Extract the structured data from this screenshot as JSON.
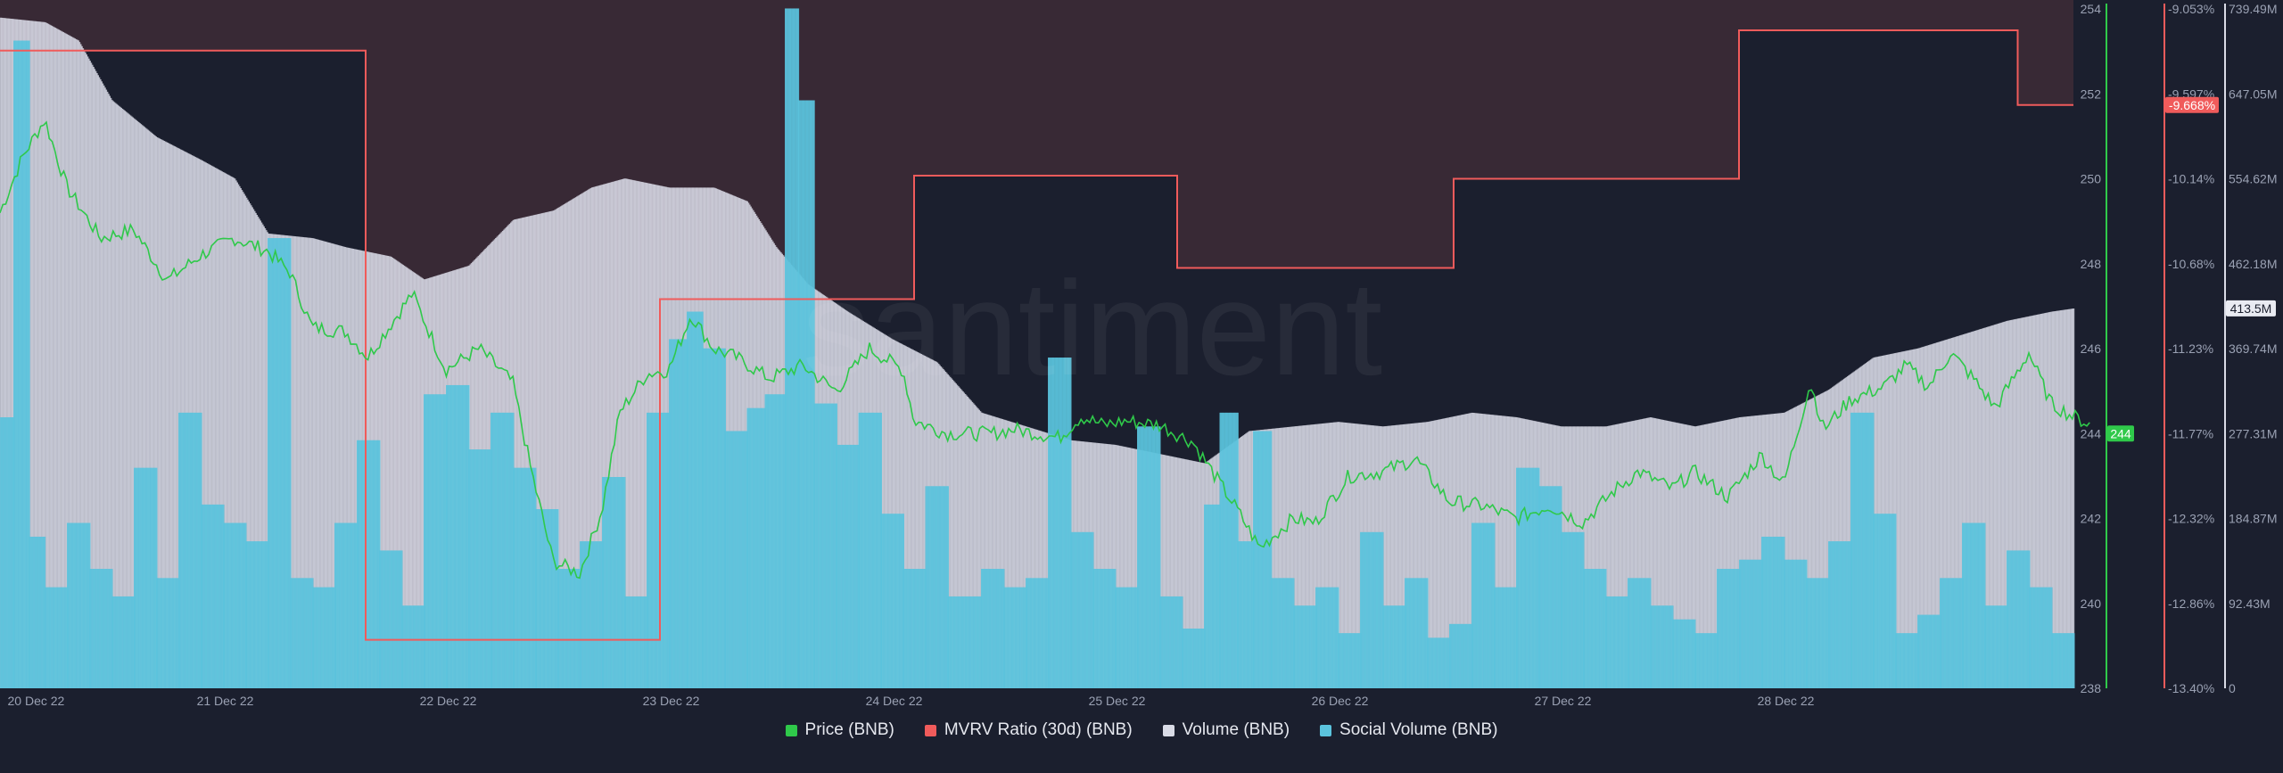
{
  "watermark": "santiment",
  "colors": {
    "background": "#1b1f2e",
    "price": "#2fc94a",
    "mvrv": "#f05b5b",
    "volume": "#d9dbe6",
    "social": "#5bc3dd",
    "mvrv_fill": "#3c2a36"
  },
  "chart_data": {
    "type": "bar",
    "x_ticks": [
      "20 Dec 22",
      "21 Dec 22",
      "22 Dec 22",
      "23 Dec 22",
      "24 Dec 22",
      "25 Dec 22",
      "26 Dec 22",
      "27 Dec 22",
      "28 Dec 22"
    ],
    "x_range": [
      "20 Dec 22",
      "28 Dec 22"
    ],
    "y_price_ticks": [
      "254",
      "252",
      "250",
      "248",
      "246",
      "244",
      "242",
      "240",
      "238"
    ],
    "y_price_range": [
      238,
      254
    ],
    "y_mvrv_ticks": [
      "-9.053%",
      "-9.597%",
      "-10.14%",
      "-10.68%",
      "-11.23%",
      "-11.77%",
      "-12.32%",
      "-12.86%",
      "-13.40%"
    ],
    "y_mvrv_range": [
      -13.4,
      -9.053
    ],
    "y_volume_ticks": [
      "739.49M",
      "647.05M",
      "554.62M",
      "462.18M",
      "369.74M",
      "277.31M",
      "184.87M",
      "92.43M",
      "0"
    ],
    "y_volume_range": [
      0,
      739.49
    ],
    "current_labels": {
      "price": "244",
      "mvrv": "-9.668%",
      "volume": "413.5M"
    },
    "series": [
      {
        "name": "Price (BNB)",
        "type": "line",
        "axis": "price",
        "points": [
          [
            0.0,
            249.2
          ],
          [
            0.1,
            250.5
          ],
          [
            0.2,
            251.4
          ],
          [
            0.3,
            249.8
          ],
          [
            0.45,
            248.6
          ],
          [
            0.6,
            248.8
          ],
          [
            0.75,
            247.6
          ],
          [
            0.9,
            248.2
          ],
          [
            1.05,
            248.6
          ],
          [
            1.2,
            248.3
          ],
          [
            1.3,
            247.8
          ],
          [
            1.4,
            246.5
          ],
          [
            1.55,
            246.4
          ],
          [
            1.65,
            245.8
          ],
          [
            1.85,
            247.3
          ],
          [
            2.0,
            245.5
          ],
          [
            2.15,
            246.0
          ],
          [
            2.3,
            245.2
          ],
          [
            2.38,
            243.2
          ],
          [
            2.48,
            241.0
          ],
          [
            2.6,
            240.7
          ],
          [
            2.7,
            242.2
          ],
          [
            2.78,
            244.5
          ],
          [
            2.9,
            245.4
          ],
          [
            3.0,
            245.5
          ],
          [
            3.1,
            246.8
          ],
          [
            3.2,
            246.0
          ],
          [
            3.3,
            245.8
          ],
          [
            3.45,
            245.3
          ],
          [
            3.6,
            245.6
          ],
          [
            3.75,
            245.0
          ],
          [
            3.9,
            246.0
          ],
          [
            4.05,
            245.5
          ],
          [
            4.1,
            244.3
          ],
          [
            4.25,
            244.0
          ],
          [
            4.45,
            244.0
          ],
          [
            4.55,
            244.1
          ],
          [
            4.75,
            243.9
          ],
          [
            4.85,
            244.4
          ],
          [
            4.95,
            244.2
          ],
          [
            5.05,
            244.3
          ],
          [
            5.2,
            244.2
          ],
          [
            5.35,
            243.8
          ],
          [
            5.55,
            242.2
          ],
          [
            5.65,
            241.3
          ],
          [
            5.8,
            242.0
          ],
          [
            5.9,
            241.9
          ],
          [
            6.05,
            243.0
          ],
          [
            6.2,
            243.1
          ],
          [
            6.35,
            243.4
          ],
          [
            6.5,
            242.4
          ],
          [
            6.65,
            242.3
          ],
          [
            6.8,
            242.0
          ],
          [
            6.95,
            242.3
          ],
          [
            7.1,
            241.9
          ],
          [
            7.25,
            242.7
          ],
          [
            7.35,
            243.1
          ],
          [
            7.5,
            242.7
          ],
          [
            7.6,
            243.1
          ],
          [
            7.75,
            242.5
          ],
          [
            7.9,
            243.5
          ],
          [
            8.0,
            242.8
          ],
          [
            8.12,
            245.2
          ],
          [
            8.18,
            244.1
          ],
          [
            8.3,
            244.8
          ],
          [
            8.45,
            245.1
          ],
          [
            8.55,
            245.6
          ],
          [
            8.65,
            245.1
          ],
          [
            8.75,
            245.9
          ],
          [
            8.85,
            245.3
          ],
          [
            8.95,
            244.6
          ],
          [
            9.1,
            245.9
          ],
          [
            9.2,
            244.7
          ],
          [
            9.3,
            244.4
          ],
          [
            9.38,
            244.2
          ]
        ]
      },
      {
        "name": "MVRV Ratio (30d) (BNB)",
        "type": "step",
        "axis": "mvrv",
        "points": [
          [
            0.0,
            -9.32
          ],
          [
            1.64,
            -9.32
          ],
          [
            1.64,
            -13.09
          ],
          [
            2.96,
            -13.09
          ],
          [
            2.96,
            -10.91
          ],
          [
            4.1,
            -10.91
          ],
          [
            4.1,
            -10.12
          ],
          [
            5.28,
            -10.12
          ],
          [
            5.28,
            -10.71
          ],
          [
            6.52,
            -10.71
          ],
          [
            6.52,
            -10.14
          ],
          [
            7.8,
            -10.14
          ],
          [
            7.8,
            -9.19
          ],
          [
            9.05,
            -9.19
          ],
          [
            9.05,
            -9.668
          ],
          [
            9.3,
            -9.668
          ]
        ]
      },
      {
        "name": "Volume (BNB)",
        "type": "bar",
        "axis": "volume",
        "points": [
          [
            0.0,
            730
          ],
          [
            0.2,
            725
          ],
          [
            0.35,
            705
          ],
          [
            0.5,
            640
          ],
          [
            0.7,
            600
          ],
          [
            0.9,
            575
          ],
          [
            1.05,
            555
          ],
          [
            1.2,
            495
          ],
          [
            1.4,
            490
          ],
          [
            1.55,
            480
          ],
          [
            1.75,
            470
          ],
          [
            1.9,
            445
          ],
          [
            2.1,
            460
          ],
          [
            2.3,
            510
          ],
          [
            2.48,
            520
          ],
          [
            2.65,
            545
          ],
          [
            2.8,
            555
          ],
          [
            3.0,
            545
          ],
          [
            3.2,
            545
          ],
          [
            3.35,
            530
          ],
          [
            3.48,
            480
          ],
          [
            3.62,
            440
          ],
          [
            3.8,
            410
          ],
          [
            4.0,
            380
          ],
          [
            4.2,
            355
          ],
          [
            4.4,
            300
          ],
          [
            4.6,
            285
          ],
          [
            4.8,
            270
          ],
          [
            5.0,
            265
          ],
          [
            5.2,
            255
          ],
          [
            5.4,
            245
          ],
          [
            5.6,
            280
          ],
          [
            5.8,
            285
          ],
          [
            6.0,
            290
          ],
          [
            6.2,
            285
          ],
          [
            6.4,
            290
          ],
          [
            6.6,
            300
          ],
          [
            6.8,
            295
          ],
          [
            7.0,
            285
          ],
          [
            7.2,
            285
          ],
          [
            7.4,
            295
          ],
          [
            7.6,
            285
          ],
          [
            7.8,
            295
          ],
          [
            8.0,
            300
          ],
          [
            8.2,
            325
          ],
          [
            8.4,
            360
          ],
          [
            8.6,
            370
          ],
          [
            8.8,
            385
          ],
          [
            9.0,
            400
          ],
          [
            9.2,
            410
          ],
          [
            9.3,
            413.5
          ]
        ]
      },
      {
        "name": "Social Volume (BNB)",
        "type": "bar",
        "axis": "volume",
        "points": [
          [
            0.0,
            295
          ],
          [
            0.06,
            705
          ],
          [
            0.13,
            165
          ],
          [
            0.2,
            110
          ],
          [
            0.3,
            180
          ],
          [
            0.4,
            130
          ],
          [
            0.5,
            100
          ],
          [
            0.6,
            240
          ],
          [
            0.7,
            120
          ],
          [
            0.8,
            300
          ],
          [
            0.9,
            200
          ],
          [
            1.0,
            180
          ],
          [
            1.1,
            160
          ],
          [
            1.2,
            490
          ],
          [
            1.3,
            120
          ],
          [
            1.4,
            110
          ],
          [
            1.5,
            180
          ],
          [
            1.6,
            270
          ],
          [
            1.7,
            150
          ],
          [
            1.8,
            90
          ],
          [
            1.9,
            320
          ],
          [
            2.0,
            330
          ],
          [
            2.1,
            260
          ],
          [
            2.2,
            300
          ],
          [
            2.3,
            240
          ],
          [
            2.4,
            195
          ],
          [
            2.5,
            130
          ],
          [
            2.6,
            160
          ],
          [
            2.7,
            230
          ],
          [
            2.8,
            100
          ],
          [
            2.9,
            300
          ],
          [
            3.0,
            380
          ],
          [
            3.08,
            410
          ],
          [
            3.15,
            370
          ],
          [
            3.25,
            280
          ],
          [
            3.35,
            305
          ],
          [
            3.43,
            320
          ],
          [
            3.52,
            740
          ],
          [
            3.58,
            640
          ],
          [
            3.65,
            310
          ],
          [
            3.75,
            265
          ],
          [
            3.85,
            300
          ],
          [
            3.95,
            190
          ],
          [
            4.05,
            130
          ],
          [
            4.15,
            220
          ],
          [
            4.25,
            100
          ],
          [
            4.4,
            130
          ],
          [
            4.5,
            110
          ],
          [
            4.6,
            120
          ],
          [
            4.7,
            360
          ],
          [
            4.8,
            170
          ],
          [
            4.9,
            130
          ],
          [
            5.0,
            110
          ],
          [
            5.1,
            285
          ],
          [
            5.2,
            100
          ],
          [
            5.3,
            65
          ],
          [
            5.4,
            200
          ],
          [
            5.47,
            300
          ],
          [
            5.55,
            160
          ],
          [
            5.62,
            280
          ],
          [
            5.7,
            120
          ],
          [
            5.8,
            90
          ],
          [
            5.9,
            110
          ],
          [
            6.0,
            60
          ],
          [
            6.1,
            170
          ],
          [
            6.2,
            90
          ],
          [
            6.3,
            120
          ],
          [
            6.4,
            55
          ],
          [
            6.5,
            70
          ],
          [
            6.6,
            180
          ],
          [
            6.7,
            110
          ],
          [
            6.8,
            240
          ],
          [
            6.9,
            220
          ],
          [
            7.0,
            170
          ],
          [
            7.1,
            130
          ],
          [
            7.2,
            100
          ],
          [
            7.3,
            120
          ],
          [
            7.4,
            90
          ],
          [
            7.5,
            75
          ],
          [
            7.6,
            60
          ],
          [
            7.7,
            130
          ],
          [
            7.8,
            140
          ],
          [
            7.9,
            165
          ],
          [
            8.0,
            140
          ],
          [
            8.1,
            120
          ],
          [
            8.2,
            160
          ],
          [
            8.3,
            300
          ],
          [
            8.4,
            190
          ],
          [
            8.5,
            60
          ],
          [
            8.6,
            80
          ],
          [
            8.7,
            120
          ],
          [
            8.8,
            180
          ],
          [
            8.9,
            90
          ],
          [
            9.0,
            150
          ],
          [
            9.1,
            110
          ],
          [
            9.2,
            60
          ],
          [
            9.3,
            45
          ]
        ]
      }
    ],
    "legend": [
      "Price (BNB)",
      "MVRV Ratio (30d) (BNB)",
      "Volume (BNB)",
      "Social Volume (BNB)"
    ],
    "legend_position": "bottom"
  }
}
